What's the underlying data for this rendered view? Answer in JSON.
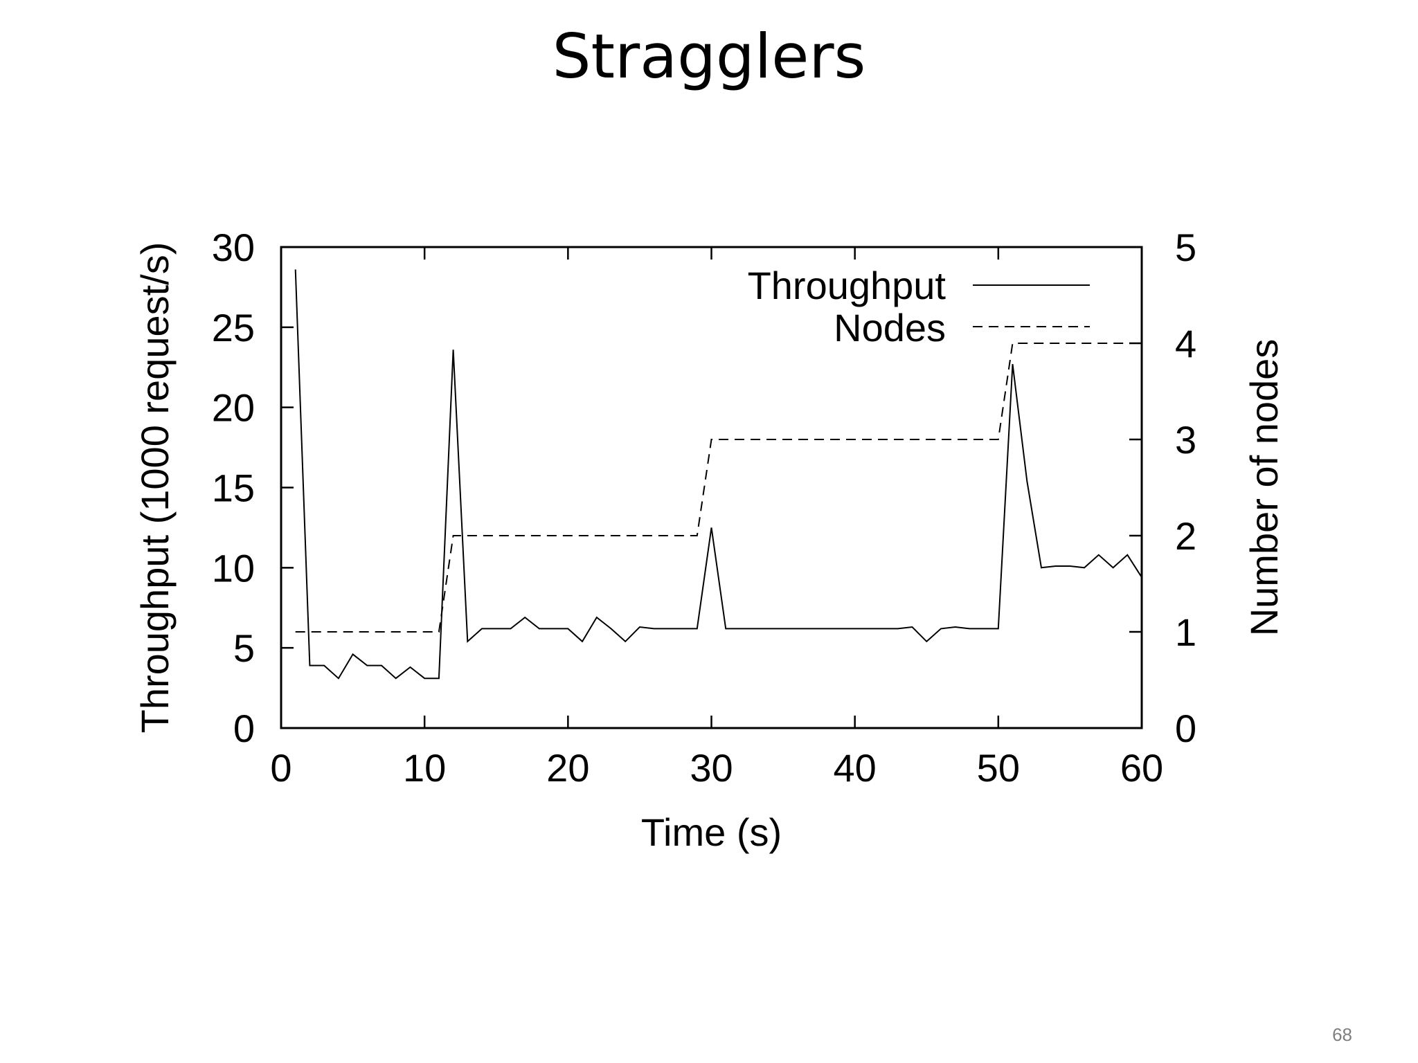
{
  "slide": {
    "title": "Stragglers",
    "page_number": "68"
  },
  "chart_data": {
    "type": "line",
    "xlabel": "Time (s)",
    "ylabel": "Throughput (1000 request/s)",
    "y2label": "Number of nodes",
    "xlim": [
      0,
      60
    ],
    "ylim": [
      0,
      30
    ],
    "y2lim": [
      0,
      5
    ],
    "xticks": [
      0,
      10,
      20,
      30,
      40,
      50,
      60
    ],
    "yticks": [
      0,
      5,
      10,
      15,
      20,
      25,
      30
    ],
    "y2ticks": [
      0,
      1,
      2,
      3,
      4,
      5
    ],
    "legend_position": "top-right",
    "series": [
      {
        "name": "Throughput",
        "axis": "left",
        "style": "solid",
        "x": [
          1,
          2,
          3,
          4,
          5,
          6,
          7,
          8,
          9,
          10,
          11,
          12,
          13,
          14,
          15,
          16,
          17,
          18,
          19,
          20,
          21,
          22,
          23,
          24,
          25,
          26,
          27,
          28,
          29,
          30,
          31,
          32,
          33,
          34,
          35,
          36,
          37,
          38,
          39,
          40,
          41,
          42,
          43,
          44,
          45,
          46,
          47,
          48,
          49,
          50,
          51,
          52,
          53,
          54,
          55,
          56,
          57,
          58,
          59,
          60
        ],
        "y": [
          28.6,
          3.9,
          3.9,
          3.1,
          4.6,
          3.9,
          3.9,
          3.1,
          3.8,
          3.1,
          3.1,
          23.6,
          5.4,
          6.2,
          6.2,
          6.2,
          6.9,
          6.2,
          6.2,
          6.2,
          5.4,
          6.9,
          6.2,
          5.4,
          6.3,
          6.2,
          6.2,
          6.2,
          6.2,
          12.5,
          6.2,
          6.2,
          6.2,
          6.2,
          6.2,
          6.2,
          6.2,
          6.2,
          6.2,
          6.2,
          6.2,
          6.2,
          6.2,
          6.3,
          5.4,
          6.2,
          6.3,
          6.2,
          6.2,
          6.2,
          22.7,
          15.4,
          10.0,
          10.1,
          10.1,
          10.0,
          10.8,
          10.0,
          10.8,
          9.4
        ]
      },
      {
        "name": "Nodes",
        "axis": "right",
        "style": "dashed",
        "x": [
          1,
          11,
          12,
          29,
          30,
          50,
          51,
          60
        ],
        "y": [
          1,
          1,
          2,
          2,
          3,
          3,
          4,
          4
        ]
      }
    ]
  }
}
